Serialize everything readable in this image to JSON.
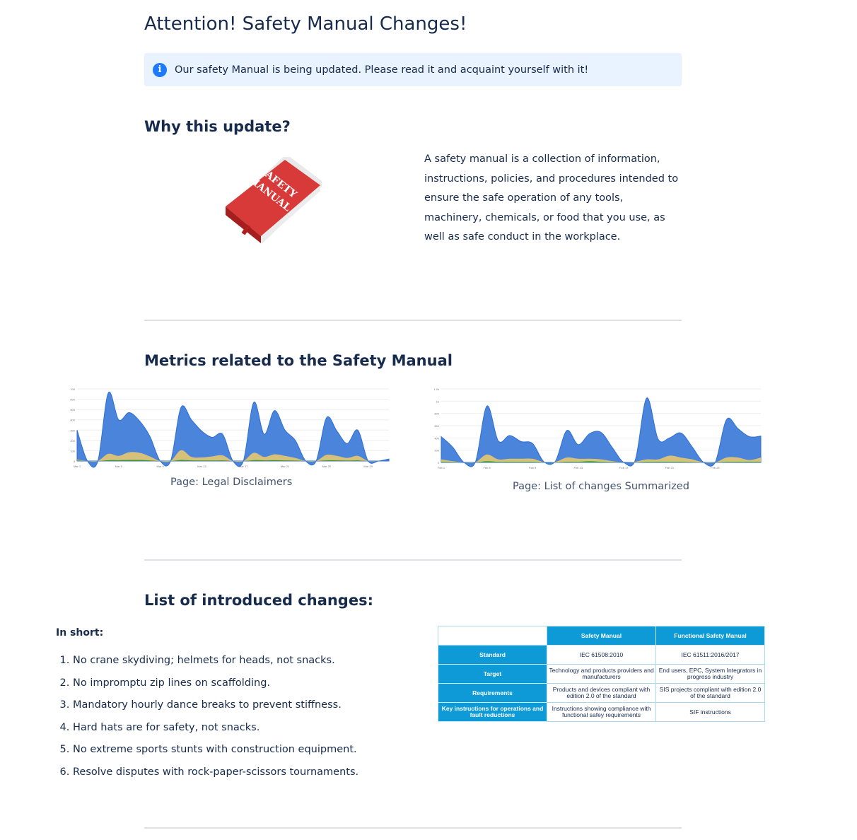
{
  "page": {
    "title": "Attention! Safety Manual Changes!",
    "banner": {
      "icon": "info-icon",
      "text": "Our safety Manual is being updated. Please read it and acquaint yourself with it!"
    },
    "why": {
      "heading": "Why this update?",
      "image_text": "SAFETY MANUAL",
      "paragraph": "A safety manual is a collection of information, instructions, policies, and procedures intended to ensure the safe operation of any tools, machinery, chemicals, or food that you use, as well as safe conduct in the workplace."
    },
    "metrics": {
      "heading": "Metrics related to the Safety Manual",
      "captions": [
        "Page: Legal Disclaimers",
        "Page: List of changes Summarized"
      ]
    },
    "changes": {
      "heading": "List of introduced changes:",
      "subheading": "In short:",
      "items": [
        "No crane skydiving; helmets for heads, not snacks.",
        "No impromptu zip lines on scaffolding.",
        "Mandatory hourly dance breaks to prevent stiffness.",
        "Hard hats are for safety, not snacks.",
        "No extreme sports stunts with construction equipment.",
        "Resolve disputes with rock-paper-scissors tournaments."
      ],
      "table": {
        "headers": [
          "",
          "Safety Manual",
          "Functional Safety Manual"
        ],
        "rows": [
          [
            "Standard",
            "IEC 61508:2010",
            "IEC 61511:2016/2017"
          ],
          [
            "Target",
            "Technology and products providers and manufacturers",
            "End users, EPC, System Integrators in progress industry"
          ],
          [
            "Requirements",
            "Products and devices compliant with edition 2.0 of the standard",
            "SIS projects compliant with edition 2.0 of the standard"
          ],
          [
            "Key instructions for operations and fault reductions",
            "Instructions showing compliance with functional safey requirements",
            "SIF instructions"
          ]
        ]
      }
    }
  },
  "colors": {
    "accent": "#1d7afc",
    "blue_series": "#4a84db",
    "yellow_series": "#d6c07a",
    "green_series": "#3a9a3a",
    "table_header": "#0e9ad7"
  },
  "chart_data": [
    {
      "type": "area",
      "stacked": true,
      "x_ticks": [
        "Mar 1",
        "Mar 5",
        "Mar 9",
        "Mar 13",
        "Mar 17",
        "Mar 21",
        "Mar 25",
        "Mar 29"
      ],
      "y_ticks": [
        "0",
        "100",
        "200",
        "300",
        "400",
        "500",
        "600",
        "700"
      ],
      "ylim": [
        0,
        700
      ],
      "grid": true,
      "series": [
        {
          "color": "#4a84db",
          "values": [
            300,
            0,
            0,
            660,
            400,
            470,
            390,
            240,
            0,
            0,
            520,
            400,
            290,
            230,
            260,
            0,
            0,
            570,
            260,
            490,
            300,
            200,
            0,
            0,
            420,
            290,
            170,
            300,
            0,
            0,
            20
          ]
        },
        {
          "color": "#d6c07a",
          "values": [
            15,
            0,
            0,
            70,
            50,
            85,
            80,
            45,
            0,
            0,
            105,
            40,
            35,
            45,
            55,
            0,
            0,
            80,
            40,
            65,
            50,
            30,
            0,
            0,
            60,
            50,
            30,
            50,
            0,
            0,
            0
          ]
        },
        {
          "color": "#3a9a3a",
          "values": [
            5,
            0,
            0,
            8,
            8,
            10,
            10,
            6,
            0,
            0,
            10,
            6,
            5,
            5,
            6,
            0,
            0,
            8,
            6,
            8,
            6,
            4,
            0,
            0,
            6,
            6,
            4,
            6,
            0,
            0,
            0
          ]
        }
      ]
    },
    {
      "type": "area",
      "stacked": true,
      "x_ticks": [
        "Feb 1",
        "Feb 5",
        "Feb 9",
        "Feb 13",
        "Feb 17",
        "Feb 21",
        "Feb 25"
      ],
      "y_ticks": [
        "0",
        "200",
        "400",
        "600",
        "800",
        "1k",
        "1.2k"
      ],
      "ylim": [
        0,
        1200
      ],
      "grid": true,
      "series": [
        {
          "color": "#4a84db",
          "values": [
            420,
            250,
            0,
            10,
            920,
            350,
            440,
            340,
            310,
            10,
            20,
            520,
            290,
            470,
            490,
            240,
            0,
            40,
            1050,
            380,
            400,
            480,
            250,
            0,
            0,
            700,
            550,
            420,
            430
          ]
        },
        {
          "color": "#d6c07a",
          "values": [
            50,
            20,
            0,
            5,
            130,
            50,
            60,
            60,
            60,
            5,
            10,
            80,
            60,
            60,
            50,
            20,
            0,
            10,
            50,
            50,
            110,
            80,
            50,
            0,
            0,
            80,
            80,
            40,
            80
          ]
        },
        {
          "color": "#3a9a3a",
          "values": [
            10,
            5,
            0,
            0,
            20,
            10,
            10,
            10,
            10,
            0,
            0,
            10,
            10,
            20,
            10,
            5,
            0,
            0,
            10,
            10,
            10,
            10,
            5,
            0,
            0,
            10,
            10,
            10,
            10
          ]
        }
      ]
    }
  ]
}
